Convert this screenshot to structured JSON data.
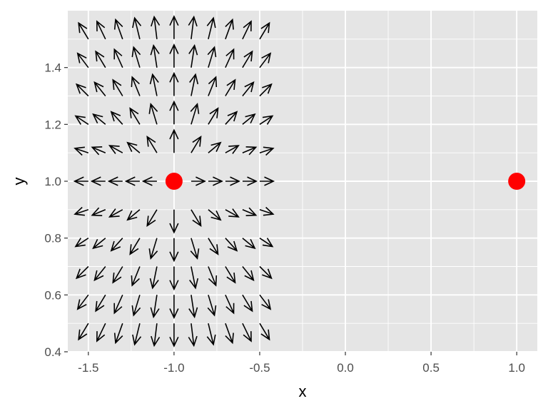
{
  "chart_data": {
    "type": "scatter",
    "subtype": "vector-field-with-points",
    "title": "",
    "xlabel": "x",
    "ylabel": "y",
    "xlim": [
      -1.62,
      1.12
    ],
    "ylim": [
      0.4,
      1.6
    ],
    "x_ticks": [
      -1.5,
      -1.0,
      -0.5,
      0.0,
      0.5,
      1.0
    ],
    "x_tick_labels": [
      "-1.5",
      "-1.0",
      "-0.5",
      "0.0",
      "0.5",
      "1.0"
    ],
    "y_ticks": [
      0.4,
      0.6,
      0.8,
      1.0,
      1.2,
      1.4
    ],
    "y_tick_labels": [
      "0.4",
      "0.6",
      "0.8",
      "1.0",
      "1.2",
      "1.4"
    ],
    "grid": true,
    "legend": "none",
    "colors": {
      "panel": "#e5e5e5",
      "grid": "#ffffff",
      "arrow": "#000000",
      "point": "#ff0000",
      "tick_text": "#4d4d4d"
    },
    "points": [
      {
        "x": -1.0,
        "y": 1.0
      },
      {
        "x": 1.0,
        "y": 1.0
      }
    ],
    "vector_field": {
      "x_start": -1.5,
      "x_step": 0.1,
      "x_count": 11,
      "y_start": 0.5,
      "y_step": 0.1,
      "y_count": 11,
      "arrow_length": 0.08,
      "description": "field arrows point away from the source at (-1, 1)"
    }
  }
}
